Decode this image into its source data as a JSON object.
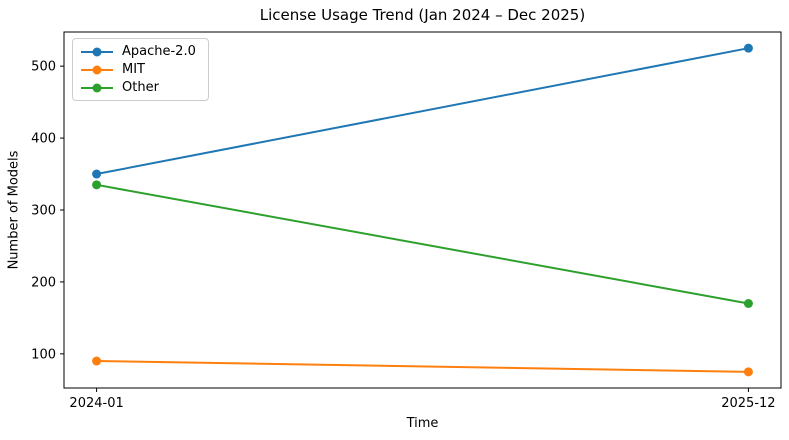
{
  "chart_data": {
    "type": "line",
    "title": "License Usage Trend (Jan 2024 – Dec 2025)",
    "xlabel": "Time",
    "ylabel": "Number of Models",
    "categories": [
      "2024-01",
      "2025-12"
    ],
    "series": [
      {
        "name": "Apache-2.0",
        "color": "#1f77b4",
        "values": [
          350,
          525
        ]
      },
      {
        "name": "MIT",
        "color": "#ff7f0e",
        "values": [
          90,
          75
        ]
      },
      {
        "name": "Other",
        "color": "#2ca02c",
        "values": [
          335,
          170
        ]
      }
    ],
    "yticks": [
      100,
      200,
      300,
      400,
      500
    ],
    "ylim": [
      52.5,
      547.5
    ],
    "x_margin": 0.05,
    "grid": false,
    "legend_position": "upper-left",
    "marker": "circle",
    "line_width": 2,
    "axis_color": "#000000",
    "background": "#ffffff"
  }
}
